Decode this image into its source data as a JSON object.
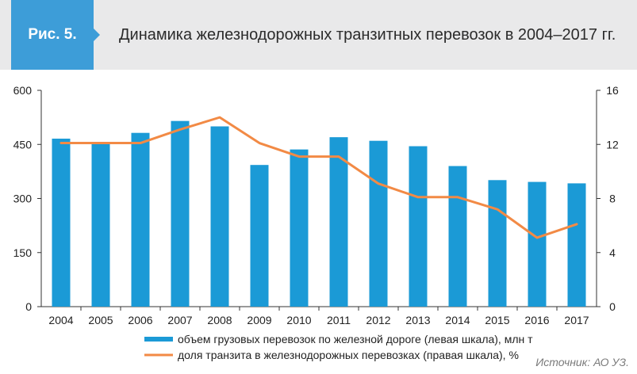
{
  "header": {
    "figure_label": "Рис. 5.",
    "title": "Динамика железнодорожных транзитных перевозок в 2004–2017 гг."
  },
  "source": "Источник: АО УЗ.",
  "colors": {
    "bar": "#1b9ad6",
    "line": "#f28a45",
    "badge": "#3d9dd8",
    "header_bg": "#e9e9ea"
  },
  "chart_data": {
    "type": "bar",
    "categories": [
      "2004",
      "2005",
      "2006",
      "2007",
      "2008",
      "2009",
      "2010",
      "2011",
      "2012",
      "2013",
      "2014",
      "2015",
      "2016",
      "2017"
    ],
    "series": [
      {
        "name": "объем грузовых перевозок по железной дороге (левая шкала), млн т",
        "type": "bar",
        "axis": "left",
        "values": [
          466,
          453,
          482,
          515,
          500,
          393,
          436,
          470,
          460,
          445,
          390,
          351,
          346,
          342
        ]
      },
      {
        "name": "доля транзита в железнодорожных перевозках (правая шкала), %",
        "type": "line",
        "axis": "right",
        "values": [
          12.1,
          12.1,
          12.1,
          13.1,
          14.0,
          12.1,
          11.1,
          11.1,
          9.1,
          8.1,
          8.1,
          7.2,
          5.1,
          6.1
        ]
      }
    ],
    "y_left": {
      "min": 0,
      "max": 600,
      "ticks": [
        "0",
        "150",
        "300",
        "450",
        "600"
      ]
    },
    "y_right": {
      "min": 0,
      "max": 16,
      "ticks": [
        "0",
        "4",
        "8",
        "12",
        "16"
      ]
    },
    "legend_position": "bottom",
    "grid": false
  }
}
